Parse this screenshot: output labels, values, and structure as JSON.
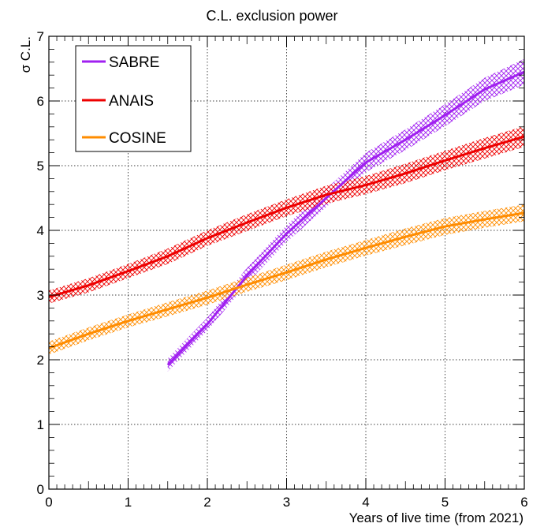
{
  "chart_data": {
    "type": "line",
    "title": "C.L. exclusion power",
    "xlabel": "Years of live time (from 2021)",
    "ylabel": "σ C.L.",
    "xlim": [
      0,
      6
    ],
    "ylim": [
      0,
      7
    ],
    "xticks": [
      "0",
      "1",
      "2",
      "3",
      "4",
      "5",
      "6"
    ],
    "yticks": [
      "0",
      "1",
      "2",
      "3",
      "4",
      "5",
      "6",
      "7"
    ],
    "grid": true,
    "legend_position": "top-left",
    "series": [
      {
        "name": "SABRE",
        "color": "#a020f0",
        "x": [
          1.5,
          2.0,
          2.5,
          3.0,
          3.5,
          4.0,
          4.5,
          5.0,
          5.5,
          6.0
        ],
        "y": [
          1.92,
          2.55,
          3.3,
          3.95,
          4.5,
          5.05,
          5.4,
          5.78,
          6.18,
          6.45
        ],
        "band": [
          0.1,
          0.1,
          0.12,
          0.13,
          0.14,
          0.15,
          0.16,
          0.17,
          0.18,
          0.2
        ]
      },
      {
        "name": "ANAIS",
        "color": "#ee0000",
        "x": [
          0,
          0.5,
          1.0,
          1.5,
          2.0,
          2.5,
          3.0,
          3.5,
          4.0,
          4.5,
          5.0,
          5.5,
          6.0
        ],
        "y": [
          2.97,
          3.15,
          3.37,
          3.6,
          3.88,
          4.12,
          4.35,
          4.55,
          4.7,
          4.88,
          5.08,
          5.27,
          5.45
        ],
        "band": [
          0.1,
          0.11,
          0.11,
          0.12,
          0.12,
          0.13,
          0.13,
          0.14,
          0.14,
          0.15,
          0.15,
          0.16,
          0.16
        ]
      },
      {
        "name": "COSINE",
        "color": "#ff8c00",
        "x": [
          0,
          0.5,
          1.0,
          1.5,
          2.0,
          2.5,
          3.0,
          3.5,
          4.0,
          4.5,
          5.0,
          5.5,
          6.0
        ],
        "y": [
          2.18,
          2.4,
          2.6,
          2.78,
          2.96,
          3.16,
          3.35,
          3.55,
          3.73,
          3.9,
          4.06,
          4.17,
          4.27
        ],
        "band": [
          0.1,
          0.1,
          0.1,
          0.11,
          0.11,
          0.11,
          0.12,
          0.12,
          0.12,
          0.13,
          0.13,
          0.13,
          0.13
        ]
      }
    ]
  }
}
